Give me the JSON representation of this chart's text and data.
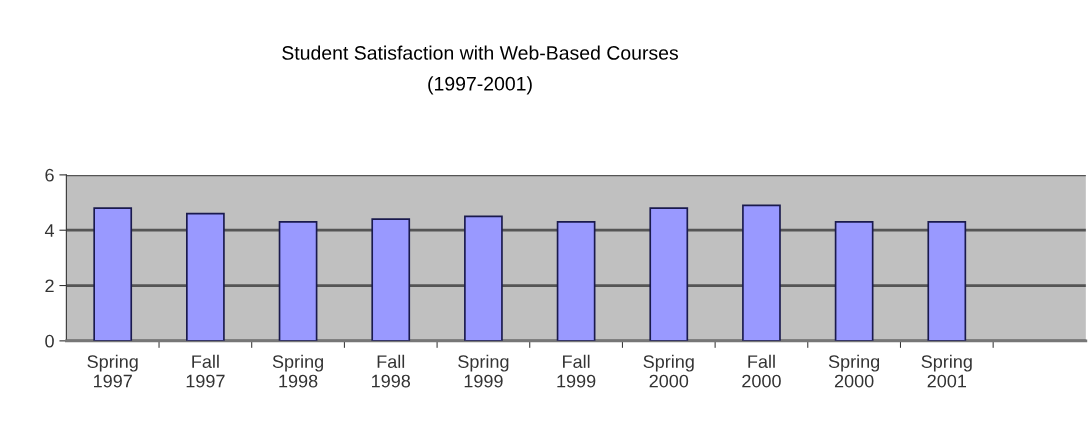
{
  "chart_data": {
    "type": "bar",
    "title": "Student Satisfaction with Web-Based Courses\n(1997-2001)",
    "categories": [
      "Spring\n1997",
      "Fall\n1997",
      "Spring\n1998",
      "Fall\n1998",
      "Spring\n1999",
      "Fall\n1999",
      "Spring\n2000",
      "Fall\n2000",
      "Spring\n2000",
      "Spring\n2001",
      null
    ],
    "values": [
      4.8,
      4.6,
      4.3,
      4.4,
      4.5,
      4.3,
      4.8,
      4.9,
      4.3,
      4.3,
      null
    ],
    "color": "#9999ff",
    "ylim": [
      0,
      6
    ],
    "yticks": [
      0,
      2,
      4,
      6
    ],
    "grid": "y",
    "legend": false
  }
}
